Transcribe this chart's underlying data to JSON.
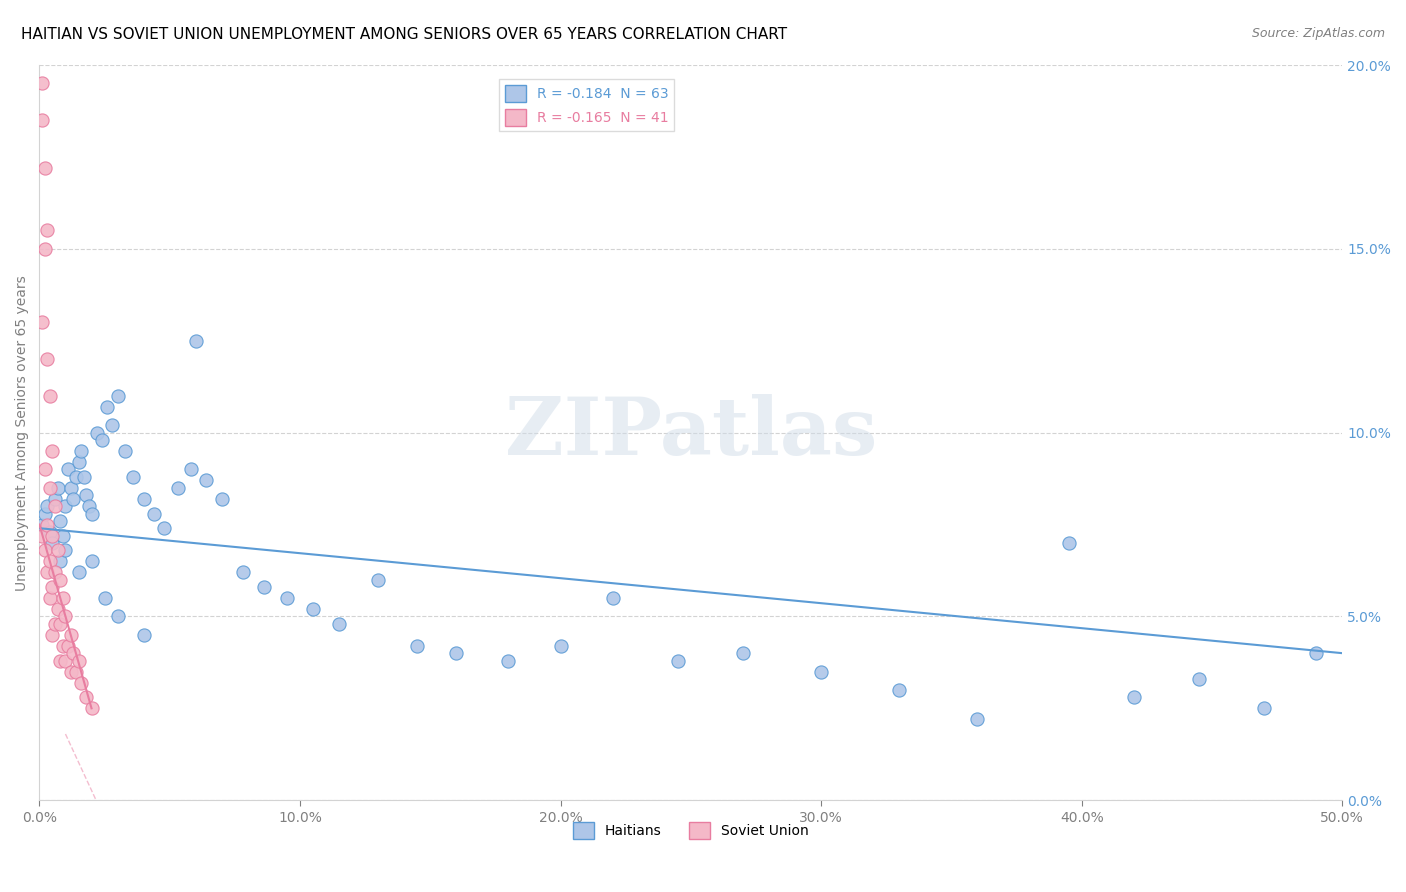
{
  "title": "HAITIAN VS SOVIET UNION UNEMPLOYMENT AMONG SENIORS OVER 65 YEARS CORRELATION CHART",
  "source": "Source: ZipAtlas.com",
  "ylabel": "Unemployment Among Seniors over 65 years",
  "xlim": [
    0.0,
    0.5
  ],
  "ylim": [
    0.0,
    0.2
  ],
  "xticks": [
    0.0,
    0.1,
    0.2,
    0.3,
    0.4,
    0.5
  ],
  "yticks": [
    0.0,
    0.05,
    0.1,
    0.15,
    0.2
  ],
  "xticklabels": [
    "0.0%",
    "10.0%",
    "20.0%",
    "30.0%",
    "40.0%",
    "50.0%"
  ],
  "yticklabels": [
    "0.0%",
    "5.0%",
    "10.0%",
    "15.0%",
    "20.0%"
  ],
  "legend_entries": [
    {
      "label": "R = -0.184  N = 63"
    },
    {
      "label": "R = -0.165  N = 41"
    }
  ],
  "legend_bottom": [
    {
      "label": "Haitians"
    },
    {
      "label": "Soviet Union"
    }
  ],
  "haitians_x": [
    0.001,
    0.002,
    0.003,
    0.004,
    0.005,
    0.006,
    0.007,
    0.008,
    0.009,
    0.01,
    0.011,
    0.012,
    0.013,
    0.014,
    0.015,
    0.016,
    0.017,
    0.018,
    0.019,
    0.02,
    0.022,
    0.024,
    0.026,
    0.028,
    0.03,
    0.033,
    0.036,
    0.04,
    0.044,
    0.048,
    0.053,
    0.058,
    0.064,
    0.07,
    0.078,
    0.086,
    0.095,
    0.105,
    0.115,
    0.13,
    0.145,
    0.16,
    0.18,
    0.2,
    0.22,
    0.245,
    0.27,
    0.3,
    0.33,
    0.36,
    0.395,
    0.42,
    0.445,
    0.47,
    0.49,
    0.008,
    0.01,
    0.015,
    0.02,
    0.025,
    0.03,
    0.04,
    0.06
  ],
  "haitians_y": [
    0.075,
    0.078,
    0.08,
    0.073,
    0.07,
    0.082,
    0.085,
    0.076,
    0.072,
    0.08,
    0.09,
    0.085,
    0.082,
    0.088,
    0.092,
    0.095,
    0.088,
    0.083,
    0.08,
    0.078,
    0.1,
    0.098,
    0.107,
    0.102,
    0.11,
    0.095,
    0.088,
    0.082,
    0.078,
    0.074,
    0.085,
    0.09,
    0.087,
    0.082,
    0.062,
    0.058,
    0.055,
    0.052,
    0.048,
    0.06,
    0.042,
    0.04,
    0.038,
    0.042,
    0.055,
    0.038,
    0.04,
    0.035,
    0.03,
    0.022,
    0.07,
    0.028,
    0.033,
    0.025,
    0.04,
    0.065,
    0.068,
    0.062,
    0.065,
    0.055,
    0.05,
    0.045,
    0.125
  ],
  "soviet_x": [
    0.001,
    0.001,
    0.001,
    0.001,
    0.002,
    0.002,
    0.002,
    0.002,
    0.003,
    0.003,
    0.003,
    0.003,
    0.004,
    0.004,
    0.004,
    0.004,
    0.005,
    0.005,
    0.005,
    0.005,
    0.006,
    0.006,
    0.006,
    0.007,
    0.007,
    0.008,
    0.008,
    0.008,
    0.009,
    0.009,
    0.01,
    0.01,
    0.011,
    0.012,
    0.012,
    0.013,
    0.014,
    0.015,
    0.016,
    0.018,
    0.02
  ],
  "soviet_y": [
    0.195,
    0.185,
    0.13,
    0.072,
    0.172,
    0.15,
    0.09,
    0.068,
    0.155,
    0.12,
    0.075,
    0.062,
    0.11,
    0.085,
    0.065,
    0.055,
    0.095,
    0.072,
    0.058,
    0.045,
    0.08,
    0.062,
    0.048,
    0.068,
    0.052,
    0.06,
    0.048,
    0.038,
    0.055,
    0.042,
    0.05,
    0.038,
    0.042,
    0.045,
    0.035,
    0.04,
    0.035,
    0.038,
    0.032,
    0.028,
    0.025
  ],
  "haitians_line_x": [
    0.0,
    0.5
  ],
  "haitians_line_y": [
    0.074,
    0.04
  ],
  "soviet_line_x": [
    0.0,
    0.02
  ],
  "soviet_line_y": [
    0.075,
    0.025
  ],
  "haitian_color": "#5b9bd5",
  "soviet_color": "#e87da0",
  "haitian_scatter_color": "#aec6e8",
  "soviet_scatter_color": "#f4b8c8",
  "background_color": "#ffffff",
  "watermark": "ZIPatlas",
  "title_fontsize": 11,
  "label_fontsize": 10,
  "tick_fontsize": 10
}
